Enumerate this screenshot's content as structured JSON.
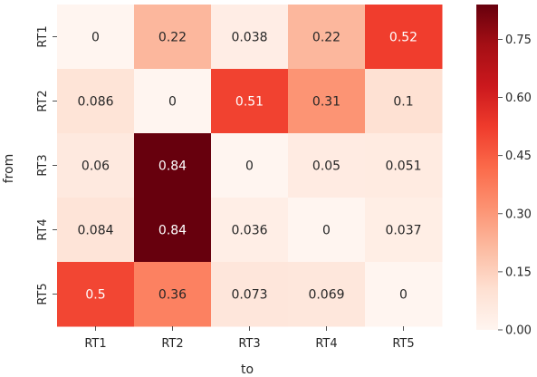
{
  "chart_data": {
    "type": "heatmap",
    "xlabel": "to",
    "ylabel": "from",
    "x_categories": [
      "RT1",
      "RT2",
      "RT3",
      "RT4",
      "RT5"
    ],
    "y_categories": [
      "RT1",
      "RT2",
      "RT3",
      "RT4",
      "RT5"
    ],
    "values": [
      [
        0,
        0.22,
        0.038,
        0.22,
        0.52
      ],
      [
        0.086,
        0,
        0.51,
        0.31,
        0.1
      ],
      [
        0.06,
        0.84,
        0,
        0.05,
        0.051
      ],
      [
        0.084,
        0.84,
        0.036,
        0,
        0.037
      ],
      [
        0.5,
        0.36,
        0.073,
        0.069,
        0
      ]
    ],
    "labels": [
      [
        "0",
        "0.22",
        "0.038",
        "0.22",
        "0.52"
      ],
      [
        "0.086",
        "0",
        "0.51",
        "0.31",
        "0.1"
      ],
      [
        "0.06",
        "0.84",
        "0",
        "0.05",
        "0.051"
      ],
      [
        "0.084",
        "0.84",
        "0.036",
        "0",
        "0.037"
      ],
      [
        "0.5",
        "0.36",
        "0.073",
        "0.069",
        "0"
      ]
    ],
    "colorbar": {
      "colormap": "Reds",
      "range": [
        0,
        0.84
      ],
      "ticks": [
        0.0,
        0.15,
        0.3,
        0.45,
        0.6,
        0.75
      ],
      "tick_labels": [
        "0.00",
        "0.15",
        "0.30",
        "0.45",
        "0.60",
        "0.75"
      ]
    },
    "grid": false
  }
}
